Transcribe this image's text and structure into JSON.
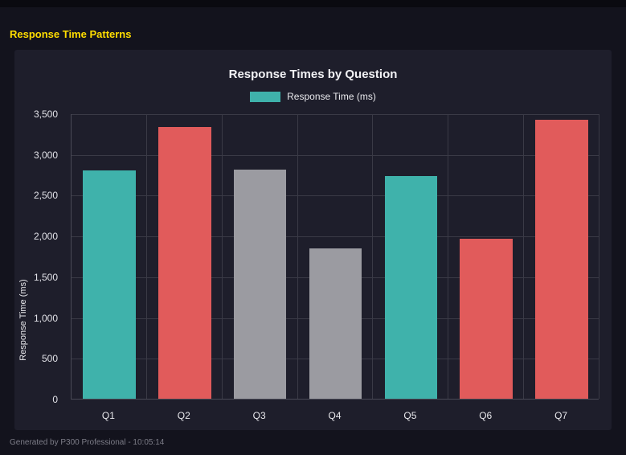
{
  "page": {
    "title": "Response Time Patterns",
    "footer": "Generated by P300 Professional - 10:05:14"
  },
  "colors": {
    "teal": "#3fb2ab",
    "red": "#e15b5b",
    "gray": "#9b9ba1",
    "panel_bg": "#1e1e2b",
    "page_bg": "#13131d",
    "grid": "#3a3a46",
    "title_yellow": "#ffdd00"
  },
  "chart_data": {
    "type": "bar",
    "title": "Response Times by Question",
    "legend": [
      {
        "label": "Response Time (ms)",
        "color": "#3fb2ab"
      }
    ],
    "legend_position": "top",
    "categories": [
      "Q1",
      "Q2",
      "Q3",
      "Q4",
      "Q5",
      "Q6",
      "Q7"
    ],
    "values": [
      2800,
      3330,
      2810,
      1840,
      2730,
      1960,
      3420
    ],
    "bar_colors": [
      "#3fb2ab",
      "#e15b5b",
      "#9b9ba1",
      "#9b9ba1",
      "#3fb2ab",
      "#e15b5b",
      "#e15b5b"
    ],
    "xlabel": "",
    "ylabel": "Response Time (ms)",
    "ylim": [
      0,
      3500
    ],
    "yticks": [
      0,
      500,
      1000,
      1500,
      2000,
      2500,
      3000,
      3500
    ],
    "ytick_labels": [
      "0",
      "500",
      "1,000",
      "1,500",
      "2,000",
      "2,500",
      "3,000",
      "3,500"
    ],
    "grid": true
  }
}
